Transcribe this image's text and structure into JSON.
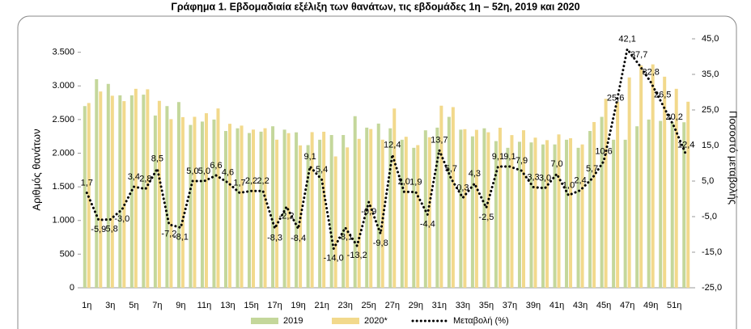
{
  "chart_data": {
    "type": "bar_line",
    "title": "Γράφημα 1.  Εβδομαδιαία εξέλιξη των θανάτων, τις εβδομάδες 1η – 52η, 2019 και 2020",
    "ylabel": "Αριθμός θανάτων",
    "y2label": "Ποσοστό μεταβολής",
    "categories": [
      "1η",
      null,
      "3η",
      null,
      "5η",
      null,
      "7η",
      null,
      "9η",
      null,
      "11η",
      null,
      "13η",
      null,
      "15η",
      null,
      "17η",
      null,
      "19η",
      null,
      "21η",
      null,
      "23η",
      null,
      "25η",
      null,
      "27η",
      null,
      "29η",
      null,
      "31η",
      null,
      "33η",
      null,
      "35η",
      null,
      "37η",
      null,
      "39η",
      null,
      "41η",
      null,
      "43η",
      null,
      "45η",
      null,
      "47η",
      null,
      "49η",
      null,
      "51η",
      null
    ],
    "series": [
      {
        "name": "2019",
        "color": "#c4d79b",
        "values": [
          2700,
          3100,
          3030,
          2860,
          2860,
          2870,
          2560,
          2700,
          2760,
          2420,
          2470,
          2500,
          2330,
          2370,
          2300,
          2320,
          2400,
          2350,
          2310,
          2120,
          2200,
          2270,
          2270,
          2550,
          2380,
          2440,
          2370,
          2200,
          2080,
          2340,
          2380,
          2540,
          2350,
          2250,
          2370,
          2180,
          2080,
          2170,
          2160,
          2130,
          2130,
          2200,
          2080,
          2330,
          2540,
          2200,
          2200,
          2400,
          2500,
          2480,
          2460,
          2460
        ]
      },
      {
        "name": "2020*",
        "color": "#f2d98c",
        "values": [
          2746,
          2917,
          2854,
          2774,
          2957,
          2950,
          2778,
          2506,
          2536,
          2541,
          2594,
          2665,
          2437,
          2410,
          2351,
          2371,
          2201,
          2298,
          2116,
          2313,
          2319,
          1952,
          2086,
          2213,
          2359,
          2201,
          2664,
          2244,
          2120,
          2237,
          2706,
          2685,
          2357,
          2347,
          2311,
          2378,
          2269,
          2341,
          2231,
          2194,
          2279,
          2222,
          2130,
          2463,
          2809,
          2763,
          3126,
          3305,
          3320,
          3137,
          2957,
          2765
        ]
      },
      {
        "name": "Μεταβολή (%)",
        "color": "#000000",
        "axis": "y2",
        "values": [
          1.7,
          -5.9,
          -5.8,
          -3.0,
          3.4,
          2.8,
          8.5,
          -7.2,
          -8.1,
          5.0,
          5.0,
          6.6,
          4.6,
          1.7,
          2.2,
          2.2,
          -8.3,
          -2.2,
          -8.4,
          9.1,
          5.4,
          -14.0,
          -8.1,
          -13.2,
          -0.9,
          -9.8,
          12.4,
          2.0,
          1.9,
          -4.4,
          13.7,
          5.7,
          0.3,
          4.3,
          -2.5,
          9.1,
          9.1,
          7.9,
          3.3,
          3.0,
          7.0,
          1.0,
          2.4,
          5.7,
          10.6,
          25.6,
          42.1,
          37.7,
          32.8,
          26.5,
          20.2,
          12.4
        ],
        "value_labels": [
          "1,7",
          "-5,9",
          "-5,8",
          "-3,0",
          "3,4",
          "2,8",
          "8,5",
          "-7,2",
          "-8,1",
          "5,0",
          "5,0",
          "6,6",
          "4,6",
          "1,7",
          "2,2",
          "2,2",
          "-8,3",
          "-2,2",
          "-8,4",
          "9,1",
          "5,4",
          "-14,0",
          "-8,1",
          "-13,2",
          "-0,9",
          "-9,8",
          "12,4",
          "2,0",
          "1,9",
          "-4,4",
          "13,7",
          "5,7",
          "0,3",
          "4,3",
          "-2,5",
          "9,1",
          "9,1",
          "7,9",
          "3,3",
          "3,0",
          "7,0",
          "1,0",
          "2,4",
          "5,7",
          "10,6",
          "25,6",
          "42,1",
          "37,7",
          "32,8",
          "26,5",
          "20,2",
          "12,4"
        ]
      }
    ],
    "ylim": [
      0,
      3700
    ],
    "yticks": [
      0,
      500,
      {
        "value": 1000,
        "label": "1.000"
      },
      {
        "value": 1500,
        "label": "1.500"
      },
      {
        "value": 2000,
        "label": "2.000"
      },
      {
        "value": 2500,
        "label": "2.500"
      },
      {
        "value": 3000,
        "label": "3.000"
      },
      {
        "value": 3500,
        "label": "3.500"
      }
    ],
    "y2lim": [
      -25,
      45
    ],
    "y2ticks": [
      {
        "value": -25,
        "label": "-25,0"
      },
      {
        "value": -15,
        "label": "-15,0"
      },
      {
        "value": -5,
        "label": "-5,0"
      },
      {
        "value": 5,
        "label": "5,0"
      },
      {
        "value": 15,
        "label": "15,0"
      },
      {
        "value": 25,
        "label": "25,0"
      },
      {
        "value": 35,
        "label": "35,0"
      },
      {
        "value": 45,
        "label": "45,0"
      }
    ],
    "legend": "bottom"
  }
}
